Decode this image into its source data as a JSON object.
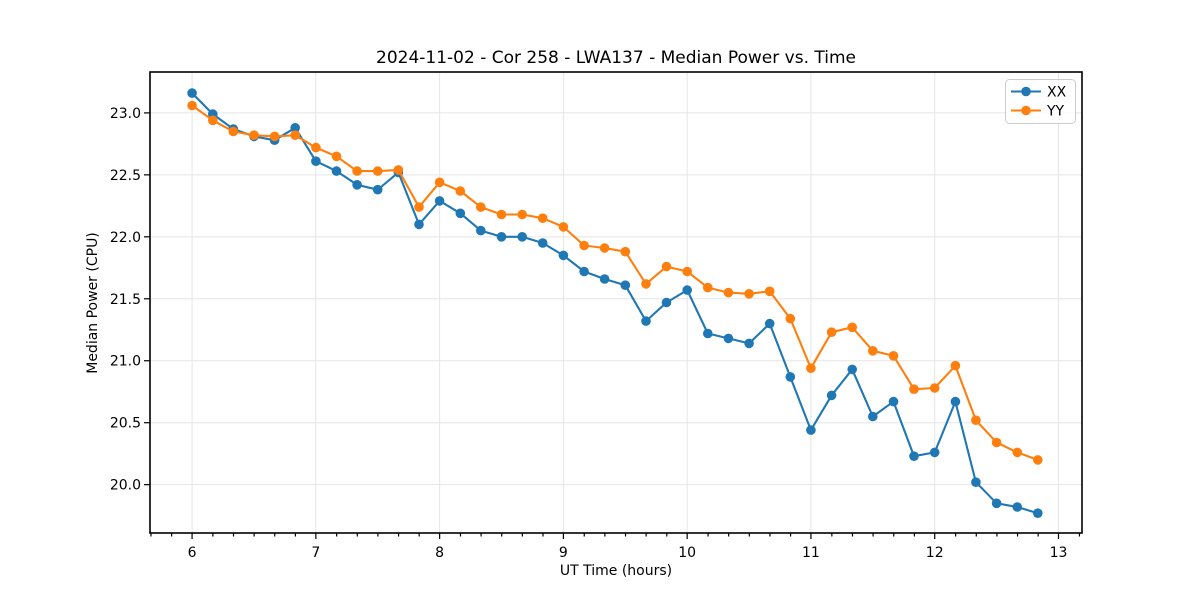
{
  "figure": {
    "background": "#ffffff",
    "frame_color": "#000000",
    "grid_color": "#e5e5e5",
    "legend_border_color": "#cccccc"
  },
  "chart_data": {
    "type": "line",
    "title": "2024-11-02 - Cor 258 - LWA137 - Median Power vs. Time",
    "xlabel": "UT Time (hours)",
    "ylabel": "Median Power (CPU)",
    "xlim": [
      5.66,
      13.19
    ],
    "ylim": [
      19.61,
      23.33
    ],
    "x_ticks": [
      6,
      7,
      8,
      9,
      10,
      11,
      12,
      13
    ],
    "x_minor_step": 0.1667,
    "y_ticks": [
      20.0,
      20.5,
      21.0,
      21.5,
      22.0,
      22.5,
      23.0
    ],
    "grid": true,
    "legend_position": "upper right",
    "marker": "circle",
    "x": [
      6.0,
      6.167,
      6.333,
      6.5,
      6.667,
      6.833,
      7.0,
      7.167,
      7.333,
      7.5,
      7.667,
      7.833,
      8.0,
      8.167,
      8.333,
      8.5,
      8.667,
      8.833,
      9.0,
      9.167,
      9.333,
      9.5,
      9.667,
      9.833,
      10.0,
      10.167,
      10.333,
      10.5,
      10.667,
      10.833,
      11.0,
      11.167,
      11.333,
      11.5,
      11.667,
      11.833,
      12.0,
      12.167,
      12.333,
      12.5,
      12.667,
      12.833
    ],
    "series": [
      {
        "name": "XX",
        "color": "#1f77b4",
        "values": [
          23.16,
          22.99,
          22.87,
          22.81,
          22.78,
          22.88,
          22.61,
          22.53,
          22.42,
          22.38,
          22.52,
          22.1,
          22.29,
          22.19,
          22.05,
          22.0,
          22.0,
          21.95,
          21.85,
          21.72,
          21.66,
          21.61,
          21.32,
          21.47,
          21.57,
          21.22,
          21.18,
          21.14,
          21.3,
          20.87,
          20.44,
          20.72,
          20.93,
          20.55,
          20.67,
          20.23,
          20.26,
          20.67,
          20.02,
          19.85,
          19.82,
          19.77
        ]
      },
      {
        "name": "YY",
        "color": "#ff7f0e",
        "values": [
          23.06,
          22.94,
          22.85,
          22.82,
          22.81,
          22.82,
          22.72,
          22.65,
          22.53,
          22.53,
          22.54,
          22.24,
          22.44,
          22.37,
          22.24,
          22.18,
          22.18,
          22.15,
          22.08,
          21.93,
          21.91,
          21.88,
          21.62,
          21.76,
          21.72,
          21.59,
          21.55,
          21.54,
          21.56,
          21.34,
          20.94,
          21.23,
          21.27,
          21.08,
          21.04,
          20.77,
          20.78,
          20.96,
          20.52,
          20.34,
          20.26,
          20.2
        ]
      }
    ]
  }
}
